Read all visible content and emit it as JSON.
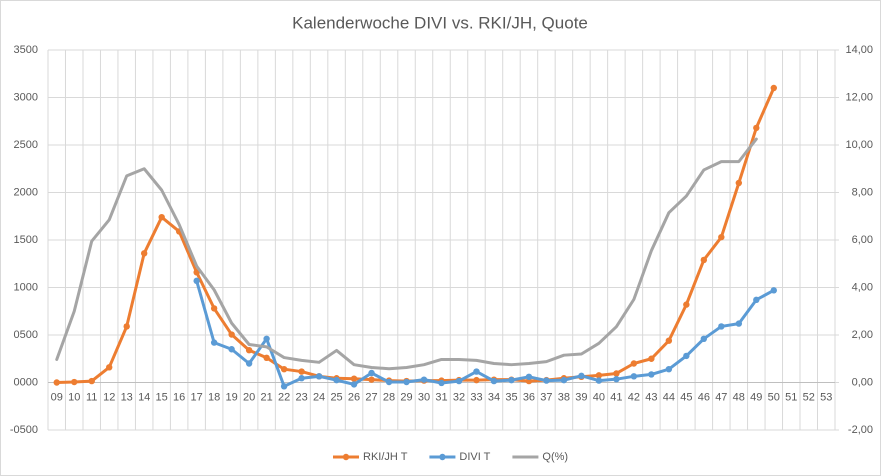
{
  "chart_data": {
    "type": "line",
    "title": "Kalenderwoche DIVI vs. RKI/JH, Quote",
    "categories": [
      "09",
      "10",
      "11",
      "12",
      "13",
      "14",
      "15",
      "16",
      "17",
      "18",
      "19",
      "20",
      "21",
      "22",
      "23",
      "24",
      "25",
      "26",
      "27",
      "28",
      "29",
      "30",
      "31",
      "32",
      "33",
      "34",
      "35",
      "36",
      "37",
      "38",
      "39",
      "40",
      "41",
      "42",
      "43",
      "44",
      "45",
      "46",
      "47",
      "48",
      "49",
      "50",
      "51",
      "52",
      "53"
    ],
    "ylim": [
      -500,
      3500
    ],
    "yticks": [
      {
        "value": -500,
        "label": "-0500"
      },
      {
        "value": 0,
        "label": "0000"
      },
      {
        "value": 500,
        "label": "0500"
      },
      1000,
      1500,
      2000,
      2500,
      3000,
      3500
    ],
    "y2lim": [
      -2,
      14
    ],
    "y2ticks": [
      {
        "value": -2,
        "label": "-2,00"
      },
      {
        "value": 0,
        "label": "0,00"
      },
      {
        "value": 2,
        "label": "2,00"
      },
      {
        "value": 4,
        "label": "4,00"
      },
      {
        "value": 6,
        "label": "6,00"
      },
      {
        "value": 8,
        "label": "8,00"
      },
      {
        "value": 10,
        "label": "10,00"
      },
      {
        "value": 12,
        "label": "12,00"
      },
      {
        "value": 14,
        "label": "14,00"
      }
    ],
    "grid": true,
    "legend": "bottom",
    "series": [
      {
        "name": "RKI/JH T",
        "color": "#ed7d31",
        "marker": true,
        "values": [
          0,
          5,
          15,
          160,
          590,
          1360,
          1740,
          1590,
          1160,
          780,
          505,
          340,
          260,
          140,
          115,
          65,
          45,
          40,
          30,
          20,
          15,
          20,
          20,
          25,
          25,
          30,
          30,
          15,
          25,
          45,
          60,
          75,
          95,
          200,
          250,
          440,
          820,
          1290,
          1530,
          2100,
          2680,
          3100,
          null,
          null,
          null
        ]
      },
      {
        "name": "DIVI T",
        "color": "#5b9bd5",
        "marker": true,
        "values": [
          null,
          null,
          null,
          null,
          null,
          null,
          null,
          null,
          1070,
          420,
          350,
          200,
          460,
          -40,
          45,
          65,
          25,
          -20,
          100,
          5,
          5,
          30,
          -5,
          15,
          115,
          15,
          25,
          60,
          20,
          25,
          70,
          20,
          35,
          65,
          85,
          140,
          280,
          460,
          590,
          620,
          870,
          970,
          null,
          null,
          null
        ]
      },
      {
        "name": "Q(%)",
        "color": "#a5a5a5",
        "marker": false,
        "axis": "y2",
        "values": [
          0.97,
          3.0,
          5.95,
          6.85,
          8.7,
          9.0,
          8.1,
          6.65,
          4.9,
          3.9,
          2.5,
          1.6,
          1.5,
          1.05,
          0.93,
          0.85,
          1.35,
          0.75,
          0.63,
          0.58,
          0.63,
          0.75,
          0.97,
          0.97,
          0.93,
          0.8,
          0.75,
          0.8,
          0.88,
          1.15,
          1.2,
          1.65,
          2.35,
          3.5,
          5.55,
          7.15,
          7.85,
          8.95,
          9.3,
          9.3,
          10.25,
          null,
          null,
          null,
          null
        ]
      }
    ]
  }
}
